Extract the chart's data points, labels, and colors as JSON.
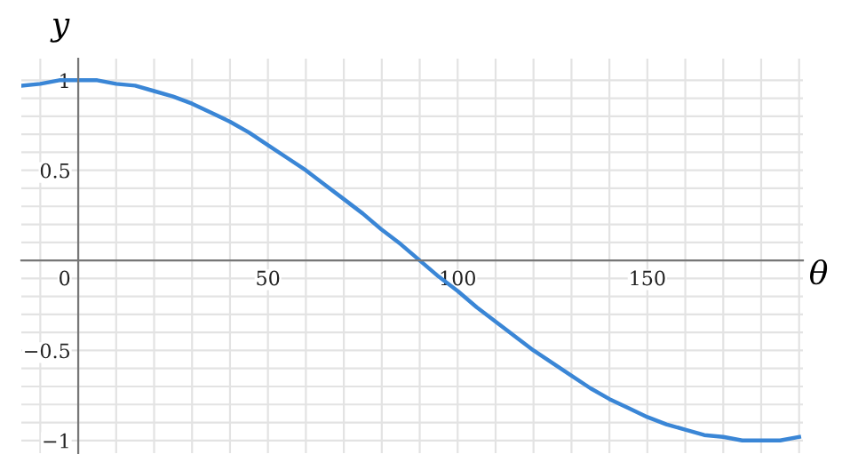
{
  "chart_data": {
    "type": "line",
    "xlabel": "θ",
    "ylabel": "y",
    "x": [
      -15,
      -10,
      -5,
      0,
      5,
      10,
      15,
      20,
      25,
      30,
      35,
      40,
      45,
      50,
      55,
      60,
      65,
      70,
      75,
      80,
      85,
      90,
      95,
      100,
      105,
      110,
      115,
      120,
      125,
      130,
      135,
      140,
      145,
      150,
      155,
      160,
      165,
      170,
      175,
      180,
      185,
      190
    ],
    "series": [
      {
        "color": "#3a86d6",
        "values": [
          0.97,
          0.98,
          1.0,
          1.0,
          1.0,
          0.98,
          0.97,
          0.94,
          0.91,
          0.87,
          0.82,
          0.77,
          0.71,
          0.64,
          0.57,
          0.5,
          0.42,
          0.34,
          0.26,
          0.17,
          0.09,
          0.0,
          -0.09,
          -0.17,
          -0.26,
          -0.34,
          -0.42,
          -0.5,
          -0.57,
          -0.64,
          -0.71,
          -0.77,
          -0.82,
          -0.87,
          -0.91,
          -0.94,
          -0.97,
          -0.98,
          -1.0,
          -1.0,
          -1.0,
          -0.98
        ]
      }
    ],
    "xlim": [
      -15,
      191
    ],
    "ylim": [
      -1.07,
      1.12
    ],
    "xticks": [
      {
        "value": -10,
        "label": null
      },
      0,
      {
        "value": 10,
        "label": null
      },
      {
        "value": 20,
        "label": null
      },
      {
        "value": 30,
        "label": null
      },
      {
        "value": 40,
        "label": null
      },
      50,
      {
        "value": 60,
        "label": null
      },
      {
        "value": 70,
        "label": null
      },
      {
        "value": 80,
        "label": null
      },
      {
        "value": 90,
        "label": null
      },
      100,
      {
        "value": 110,
        "label": null
      },
      {
        "value": 120,
        "label": null
      },
      {
        "value": 130,
        "label": null
      },
      {
        "value": 140,
        "label": null
      },
      150,
      {
        "value": 160,
        "label": null
      },
      {
        "value": 170,
        "label": null
      },
      {
        "value": 180,
        "label": null
      },
      {
        "value": 190,
        "label": null
      }
    ],
    "yticks": [
      {
        "value": -1,
        "label": "−1"
      },
      {
        "value": -0.9,
        "label": null
      },
      {
        "value": -0.8,
        "label": null
      },
      {
        "value": -0.7,
        "label": null
      },
      {
        "value": -0.6,
        "label": null
      },
      {
        "value": -0.5,
        "label": "−0.5"
      },
      {
        "value": -0.4,
        "label": null
      },
      {
        "value": -0.3,
        "label": null
      },
      {
        "value": -0.2,
        "label": null
      },
      {
        "value": -0.1,
        "label": null
      },
      {
        "value": 0,
        "label": null
      },
      {
        "value": 0.1,
        "label": null
      },
      {
        "value": 0.2,
        "label": null
      },
      {
        "value": 0.3,
        "label": null
      },
      {
        "value": 0.4,
        "label": null
      },
      0.5,
      {
        "value": 0.6,
        "label": null
      },
      {
        "value": 0.7,
        "label": null
      },
      {
        "value": 0.8,
        "label": null
      },
      {
        "value": 0.9,
        "label": null
      },
      1
    ],
    "grid": true,
    "marker": "none",
    "line_style": "solid",
    "legend": false
  }
}
